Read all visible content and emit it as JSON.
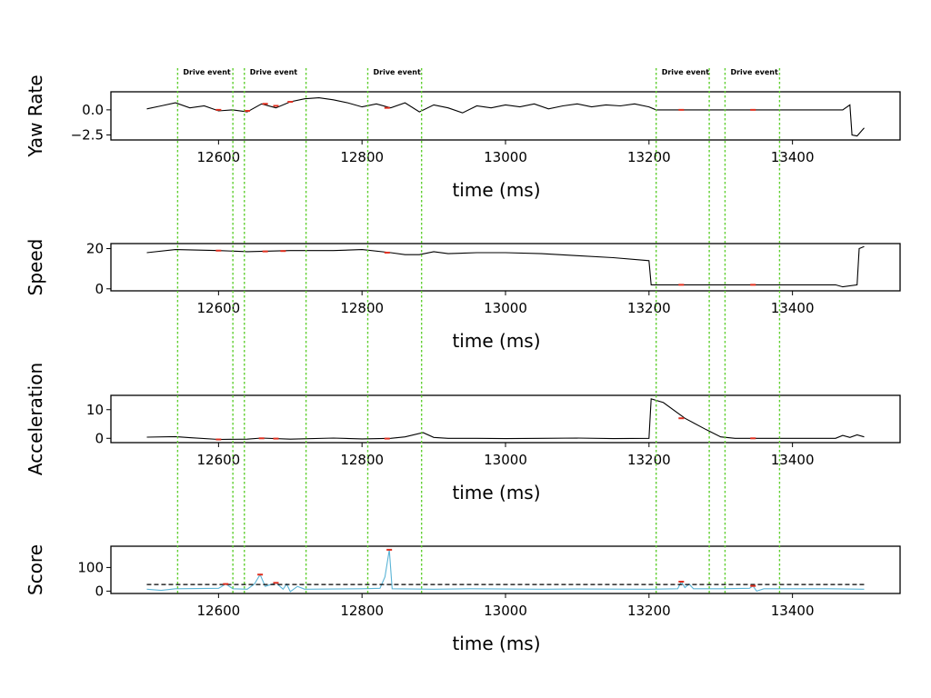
{
  "chart_data": {
    "type": "line",
    "x_domain": [
      12450,
      13550
    ],
    "x_ticks": [
      12600,
      12800,
      13000,
      13200,
      13400
    ],
    "events": [
      {
        "label": "Drive event",
        "start": 12543,
        "end": 12620
      },
      {
        "label": "Drive event",
        "start": 12636,
        "end": 12722
      },
      {
        "label": "Drive event",
        "start": 12808,
        "end": 12883
      },
      {
        "label": "Drive event",
        "start": 13210,
        "end": 13284
      },
      {
        "label": "Drive event",
        "start": 13306,
        "end": 13382
      }
    ],
    "panels": [
      {
        "ylabel": "Yaw Rate",
        "xlabel": "time (ms)",
        "ylim": [
          -3,
          1.8
        ],
        "yticks": [
          0,
          -2.5
        ],
        "ytick_labels": [
          "0.0",
          "−2.5"
        ],
        "series": [
          {
            "color": "#000000",
            "points": [
              [
                12500,
                0.1
              ],
              [
                12520,
                0.4
              ],
              [
                12540,
                0.7
              ],
              [
                12560,
                0.2
              ],
              [
                12580,
                0.4
              ],
              [
                12600,
                -0.1
              ],
              [
                12620,
                0.0
              ],
              [
                12640,
                -0.2
              ],
              [
                12660,
                0.6
              ],
              [
                12680,
                0.2
              ],
              [
                12700,
                0.8
              ],
              [
                12720,
                1.1
              ],
              [
                12740,
                1.2
              ],
              [
                12760,
                1.0
              ],
              [
                12780,
                0.7
              ],
              [
                12800,
                0.3
              ],
              [
                12820,
                0.6
              ],
              [
                12840,
                0.2
              ],
              [
                12860,
                0.7
              ],
              [
                12880,
                -0.2
              ],
              [
                12900,
                0.5
              ],
              [
                12920,
                0.2
              ],
              [
                12940,
                -0.3
              ],
              [
                12960,
                0.4
              ],
              [
                12980,
                0.2
              ],
              [
                13000,
                0.5
              ],
              [
                13020,
                0.3
              ],
              [
                13040,
                0.6
              ],
              [
                13060,
                0.1
              ],
              [
                13080,
                0.4
              ],
              [
                13100,
                0.6
              ],
              [
                13120,
                0.3
              ],
              [
                13140,
                0.5
              ],
              [
                13160,
                0.4
              ],
              [
                13180,
                0.6
              ],
              [
                13200,
                0.3
              ],
              [
                13210,
                0.0
              ],
              [
                13470,
                0.0
              ],
              [
                13480,
                0.5
              ],
              [
                13483,
                -2.5
              ],
              [
                13490,
                -2.6
              ],
              [
                13500,
                -1.8
              ]
            ]
          }
        ],
        "highlights": [
          [
            12600,
            0.0
          ],
          [
            12640,
            -0.1
          ],
          [
            12665,
            0.6
          ],
          [
            12680,
            0.4
          ],
          [
            12700,
            0.8
          ],
          [
            12835,
            0.2
          ],
          [
            13245,
            0.0
          ],
          [
            13345,
            0.0
          ]
        ]
      },
      {
        "ylabel": "Speed",
        "xlabel": "time (ms)",
        "ylim": [
          -1,
          22.5
        ],
        "yticks": [
          0,
          20
        ],
        "ytick_labels": [
          "0",
          "20"
        ],
        "series": [
          {
            "color": "#000000",
            "points": [
              [
                12500,
                18
              ],
              [
                12540,
                19.5
              ],
              [
                12600,
                19
              ],
              [
                12640,
                18.5
              ],
              [
                12700,
                19
              ],
              [
                12760,
                19
              ],
              [
                12800,
                19.5
              ],
              [
                12840,
                18
              ],
              [
                12860,
                17
              ],
              [
                12880,
                17
              ],
              [
                12900,
                18.5
              ],
              [
                12920,
                17.5
              ],
              [
                12960,
                18
              ],
              [
                13000,
                18
              ],
              [
                13050,
                17.5
              ],
              [
                13100,
                16.5
              ],
              [
                13150,
                15.5
              ],
              [
                13200,
                14
              ],
              [
                13203,
                2
              ],
              [
                13460,
                2
              ],
              [
                13470,
                1
              ],
              [
                13490,
                2
              ],
              [
                13493,
                20
              ],
              [
                13500,
                21
              ]
            ]
          }
        ],
        "highlights": [
          [
            12600,
            19
          ],
          [
            12665,
            18.6
          ],
          [
            12690,
            18.8
          ],
          [
            12835,
            18
          ],
          [
            13245,
            2
          ],
          [
            13345,
            2
          ]
        ]
      },
      {
        "ylabel": "Acceleration",
        "xlabel": "time (ms)",
        "ylim": [
          -1.5,
          15
        ],
        "yticks": [
          0,
          10
        ],
        "ytick_labels": [
          "0",
          "10"
        ],
        "series": [
          {
            "color": "#000000",
            "points": [
              [
                12500,
                0.4
              ],
              [
                12540,
                0.6
              ],
              [
                12560,
                0.2
              ],
              [
                12600,
                -0.4
              ],
              [
                12640,
                -0.3
              ],
              [
                12660,
                0.1
              ],
              [
                12700,
                -0.3
              ],
              [
                12760,
                0.1
              ],
              [
                12800,
                -0.2
              ],
              [
                12840,
                0.0
              ],
              [
                12860,
                0.5
              ],
              [
                12885,
                2.0
              ],
              [
                12900,
                0.3
              ],
              [
                12920,
                0.0
              ],
              [
                12960,
                0.0
              ],
              [
                13000,
                -0.1
              ],
              [
                13050,
                0.0
              ],
              [
                13100,
                0.1
              ],
              [
                13150,
                -0.1
              ],
              [
                13200,
                0.0
              ],
              [
                13203,
                13.8
              ],
              [
                13220,
                12.5
              ],
              [
                13250,
                7.0
              ],
              [
                13280,
                3.0
              ],
              [
                13300,
                0.5
              ],
              [
                13320,
                0.0
              ],
              [
                13460,
                0.0
              ],
              [
                13470,
                1.0
              ],
              [
                13480,
                0.3
              ],
              [
                13490,
                1.2
              ],
              [
                13500,
                0.5
              ]
            ]
          }
        ],
        "highlights": [
          [
            12600,
            -0.4
          ],
          [
            12660,
            0.0
          ],
          [
            12680,
            -0.1
          ],
          [
            12835,
            -0.1
          ],
          [
            13245,
            7.0
          ],
          [
            13345,
            0.0
          ]
        ]
      },
      {
        "ylabel": "Score",
        "xlabel": "time (ms)",
        "ylim": [
          -10,
          190
        ],
        "yticks": [
          0,
          100
        ],
        "ytick_labels": [
          "0",
          "100"
        ],
        "threshold": 28,
        "series": [
          {
            "color": "#5ab4d6",
            "points": [
              [
                12500,
                8
              ],
              [
                12520,
                3
              ],
              [
                12540,
                10
              ],
              [
                12600,
                12
              ],
              [
                12610,
                30
              ],
              [
                12620,
                10
              ],
              [
                12640,
                8
              ],
              [
                12650,
                30
              ],
              [
                12658,
                70
              ],
              [
                12665,
                20
              ],
              [
                12680,
                35
              ],
              [
                12690,
                8
              ],
              [
                12695,
                30
              ],
              [
                12700,
                -2
              ],
              [
                12710,
                20
              ],
              [
                12720,
                8
              ],
              [
                12800,
                10
              ],
              [
                12825,
                12
              ],
              [
                12832,
                60
              ],
              [
                12838,
                175
              ],
              [
                12842,
                10
              ],
              [
                12900,
                8
              ],
              [
                12950,
                10
              ],
              [
                13000,
                9
              ],
              [
                13050,
                8
              ],
              [
                13100,
                9
              ],
              [
                13200,
                8
              ],
              [
                13240,
                10
              ],
              [
                13245,
                40
              ],
              [
                13250,
                15
              ],
              [
                13256,
                30
              ],
              [
                13262,
                10
              ],
              [
                13300,
                10
              ],
              [
                13340,
                12
              ],
              [
                13345,
                22
              ],
              [
                13350,
                0
              ],
              [
                13360,
                10
              ],
              [
                13450,
                10
              ],
              [
                13500,
                8
              ]
            ]
          }
        ],
        "highlights": [
          [
            12610,
            30
          ],
          [
            12658,
            70
          ],
          [
            12680,
            35
          ],
          [
            12838,
            175
          ],
          [
            13245,
            40
          ],
          [
            13345,
            22
          ]
        ]
      }
    ]
  }
}
